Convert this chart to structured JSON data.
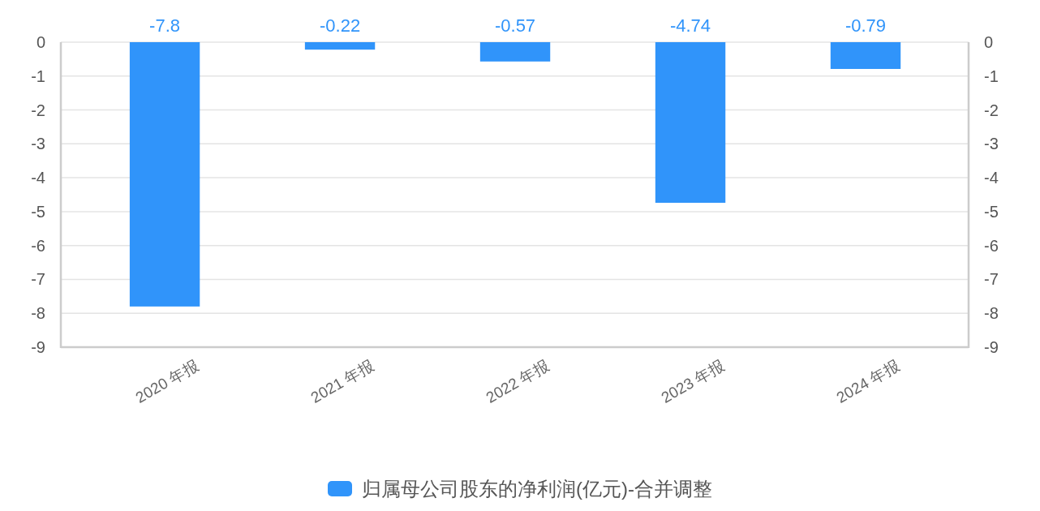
{
  "chart_data": {
    "type": "bar",
    "categories": [
      "2020 年报",
      "2021 年报",
      "2022 年报",
      "2023 年报",
      "2024 年报"
    ],
    "series": [
      {
        "name": "归属母公司股东的净利润(亿元)-合并调整",
        "color": "#3094fa",
        "values": [
          -7.8,
          -0.22,
          -0.57,
          -4.74,
          -0.79
        ]
      }
    ],
    "ylim": [
      -9,
      0
    ],
    "yticks": [
      -9,
      -8,
      -7,
      -6,
      -5,
      -4,
      -3,
      -2,
      -1,
      0
    ],
    "y2lim": [
      -9,
      0
    ],
    "y2ticks": [
      -9,
      -8,
      -7,
      -6,
      -5,
      -4,
      -3,
      -2,
      -1,
      0
    ],
    "grid": "y",
    "legend": "bottom",
    "data_labels": true
  }
}
